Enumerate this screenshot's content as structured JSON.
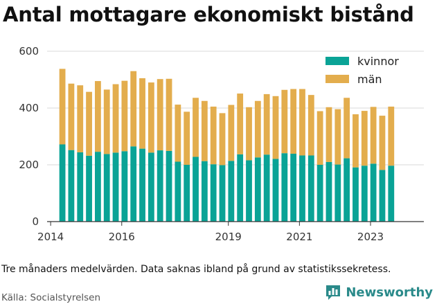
{
  "title": "Antal mottagare ekonomiskt bistånd",
  "note": "Tre månaders medelvärden. Data saknas ibland på grund av statistikssekretess.",
  "source": "Källa: Socialstyrelsen",
  "brand": {
    "name": "Newsworthy",
    "logo_icon": "bar-chart-speech-bubble-icon"
  },
  "colors": {
    "kvinnor": "#0aa396",
    "man": "#e3ad4d",
    "grid": "#d9d9d9",
    "axis": "#333333",
    "brand": "#2a8a8a"
  },
  "chart_data": {
    "type": "bar",
    "stacked": true,
    "title": "Antal mottagare ekonomiskt bistånd",
    "xlabel": "",
    "ylabel": "",
    "ylim": [
      0,
      600
    ],
    "yticks": [
      0,
      200,
      400,
      600
    ],
    "xlim": [
      2013.9,
      2024.5
    ],
    "xticks": [
      2014,
      2016,
      2019,
      2021,
      2023
    ],
    "grid": true,
    "legend_position": "top-right",
    "x": [
      2014.33,
      2014.58,
      2014.83,
      2015.08,
      2015.33,
      2015.58,
      2015.83,
      2016.08,
      2016.33,
      2016.58,
      2016.83,
      2017.08,
      2017.33,
      2017.58,
      2017.83,
      2018.08,
      2018.33,
      2018.58,
      2018.83,
      2019.08,
      2019.33,
      2019.58,
      2019.83,
      2020.08,
      2020.33,
      2020.58,
      2020.83,
      2021.08,
      2021.33,
      2021.58,
      2021.83,
      2022.08,
      2022.33,
      2022.58,
      2022.83,
      2023.08,
      2023.33,
      2023.58
    ],
    "series": [
      {
        "name": "kvinnor",
        "values": [
          272,
          252,
          244,
          232,
          246,
          238,
          243,
          248,
          265,
          257,
          243,
          251,
          249,
          211,
          200,
          228,
          213,
          202,
          199,
          214,
          237,
          216,
          226,
          236,
          221,
          241,
          239,
          233,
          233,
          200,
          210,
          201,
          223,
          191,
          197,
          204,
          182,
          197
        ]
      },
      {
        "name": "män",
        "values": [
          266,
          234,
          236,
          225,
          249,
          227,
          241,
          248,
          265,
          248,
          247,
          251,
          254,
          201,
          187,
          208,
          212,
          203,
          183,
          197,
          214,
          187,
          199,
          213,
          221,
          223,
          228,
          234,
          213,
          189,
          193,
          195,
          213,
          187,
          193,
          200,
          191,
          208
        ]
      }
    ]
  }
}
